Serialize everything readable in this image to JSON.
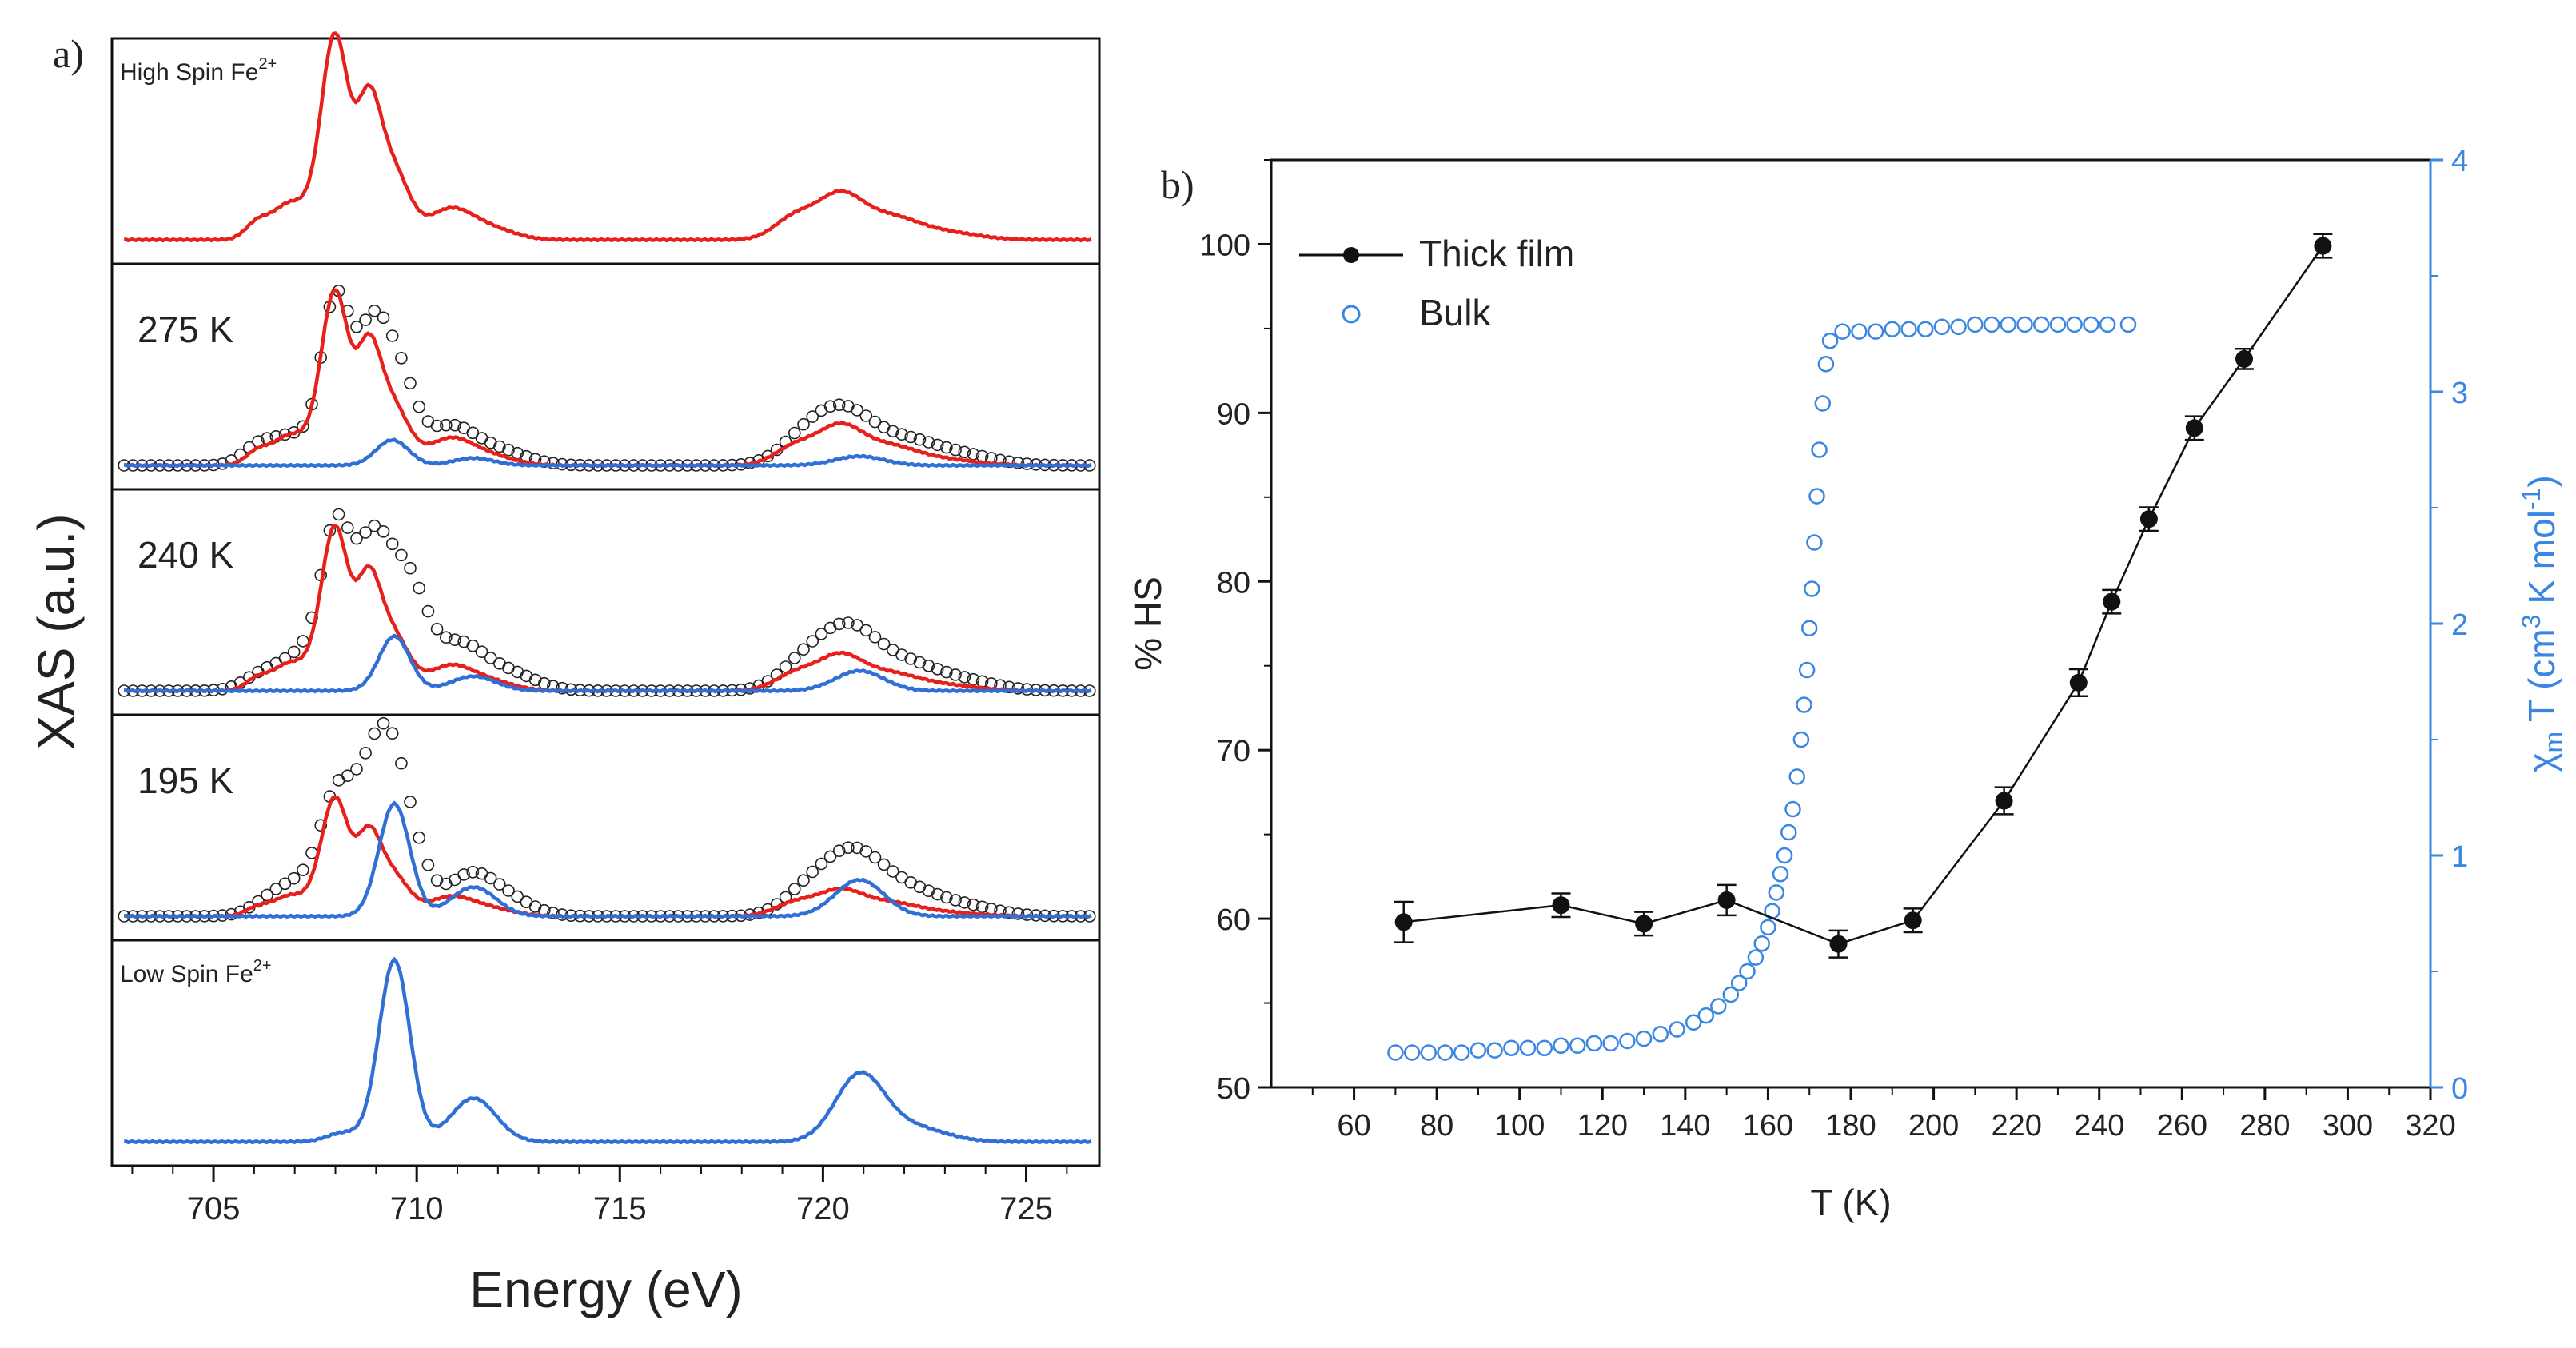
{
  "colors": {
    "hs": "#e8201c",
    "ls": "#2f6fd6",
    "exp": "#222222",
    "film": "#111111",
    "bulk": "#3a86e0",
    "axis": "#111111"
  },
  "chart_data": [
    {
      "type": "line",
      "panel_label": "a)",
      "title": "",
      "xlabel": "Energy (eV)",
      "ylabel": "XAS (a.u.)",
      "xlim": [
        702.5,
        726.8
      ],
      "xticks": [
        "705",
        "710",
        "715",
        "720",
        "725"
      ],
      "subpanels": [
        {
          "label": "High Spin Fe",
          "label_sup": "2+",
          "series": [
            {
              "name": "HS",
              "color": "hs",
              "peaks": [
                [
                  706.1,
                  0.1,
                  0.3
                ],
                [
                  706.8,
                  0.16,
                  0.35
                ],
                [
                  707.6,
                  0.18,
                  0.45
                ],
                [
                  708.0,
                  1.0,
                  0.32
                ],
                [
                  708.8,
                  0.68,
                  0.3
                ],
                [
                  709.4,
                  0.38,
                  0.4
                ],
                [
                  710.8,
                  0.16,
                  0.55
                ],
                [
                  711.8,
                  0.06,
                  0.6
                ],
                [
                  719.3,
                  0.12,
                  0.5
                ],
                [
                  720.4,
                  0.23,
                  0.55
                ],
                [
                  721.6,
                  0.12,
                  0.7
                ],
                [
                  723.0,
                  0.04,
                  0.8
                ]
              ]
            }
          ]
        },
        {
          "label": "275 K",
          "series": [
            {
              "name": "experimental",
              "color": "exp",
              "markers": "circle",
              "peaks": [
                [
                  706.1,
                  0.1,
                  0.4
                ],
                [
                  707.0,
                  0.16,
                  0.5
                ],
                [
                  708.0,
                  0.88,
                  0.35
                ],
                [
                  708.9,
                  0.72,
                  0.4
                ],
                [
                  709.6,
                  0.42,
                  0.4
                ],
                [
                  710.8,
                  0.2,
                  0.6
                ],
                [
                  712.0,
                  0.08,
                  0.7
                ],
                [
                  719.5,
                  0.12,
                  0.6
                ],
                [
                  720.5,
                  0.28,
                  0.7
                ],
                [
                  722.0,
                  0.13,
                  0.8
                ],
                [
                  723.5,
                  0.05,
                  0.8
                ]
              ]
            },
            {
              "name": "HS fraction",
              "color": "hs",
              "peaks": [
                [
                  706.1,
                  0.08,
                  0.3
                ],
                [
                  706.8,
                  0.13,
                  0.35
                ],
                [
                  707.6,
                  0.15,
                  0.45
                ],
                [
                  708.0,
                  0.85,
                  0.32
                ],
                [
                  708.8,
                  0.58,
                  0.3
                ],
                [
                  709.4,
                  0.32,
                  0.4
                ],
                [
                  710.8,
                  0.14,
                  0.55
                ],
                [
                  711.8,
                  0.05,
                  0.6
                ],
                [
                  719.3,
                  0.1,
                  0.5
                ],
                [
                  720.4,
                  0.2,
                  0.55
                ],
                [
                  721.6,
                  0.1,
                  0.7
                ],
                [
                  723.0,
                  0.03,
                  0.8
                ]
              ]
            },
            {
              "name": "LS fraction",
              "color": "ls",
              "peaks": [
                [
                  709.4,
                  0.14,
                  0.4
                ],
                [
                  711.4,
                  0.04,
                  0.5
                ],
                [
                  720.9,
                  0.05,
                  0.6
                ]
              ]
            }
          ]
        },
        {
          "label": "240 K",
          "series": [
            {
              "name": "experimental",
              "color": "exp",
              "markers": "circle",
              "peaks": [
                [
                  706.3,
                  0.1,
                  0.5
                ],
                [
                  707.3,
                  0.2,
                  0.5
                ],
                [
                  708.0,
                  0.78,
                  0.35
                ],
                [
                  708.9,
                  0.8,
                  0.45
                ],
                [
                  709.8,
                  0.55,
                  0.45
                ],
                [
                  711.0,
                  0.24,
                  0.6
                ],
                [
                  712.2,
                  0.1,
                  0.7
                ],
                [
                  719.5,
                  0.13,
                  0.6
                ],
                [
                  720.6,
                  0.32,
                  0.7
                ],
                [
                  722.0,
                  0.14,
                  0.8
                ],
                [
                  723.5,
                  0.05,
                  0.8
                ]
              ]
            },
            {
              "name": "HS fraction",
              "color": "hs",
              "peaks": [
                [
                  706.1,
                  0.07,
                  0.3
                ],
                [
                  706.8,
                  0.12,
                  0.35
                ],
                [
                  707.6,
                  0.14,
                  0.45
                ],
                [
                  708.0,
                  0.8,
                  0.32
                ],
                [
                  708.8,
                  0.55,
                  0.3
                ],
                [
                  709.4,
                  0.3,
                  0.4
                ],
                [
                  710.8,
                  0.13,
                  0.55
                ],
                [
                  711.8,
                  0.05,
                  0.6
                ],
                [
                  719.3,
                  0.09,
                  0.5
                ],
                [
                  720.4,
                  0.18,
                  0.55
                ],
                [
                  721.6,
                  0.09,
                  0.7
                ],
                [
                  723.0,
                  0.03,
                  0.8
                ]
              ]
            },
            {
              "name": "LS fraction",
              "color": "ls",
              "peaks": [
                [
                  709.45,
                  0.3,
                  0.38
                ],
                [
                  711.4,
                  0.08,
                  0.55
                ],
                [
                  720.9,
                  0.11,
                  0.6
                ]
              ]
            }
          ]
        },
        {
          "label": "195 K",
          "series": [
            {
              "name": "experimental",
              "color": "exp",
              "markers": "circle",
              "peaks": [
                [
                  706.5,
                  0.1,
                  0.5
                ],
                [
                  707.3,
                  0.16,
                  0.5
                ],
                [
                  708.0,
                  0.55,
                  0.38
                ],
                [
                  708.7,
                  0.52,
                  0.4
                ],
                [
                  709.3,
                  0.78,
                  0.4
                ],
                [
                  709.9,
                  0.3,
                  0.4
                ],
                [
                  711.3,
                  0.22,
                  0.6
                ],
                [
                  712.3,
                  0.08,
                  0.6
                ],
                [
                  719.6,
                  0.12,
                  0.6
                ],
                [
                  720.7,
                  0.32,
                  0.7
                ],
                [
                  722.0,
                  0.14,
                  0.8
                ],
                [
                  723.5,
                  0.05,
                  0.8
                ]
              ]
            },
            {
              "name": "HS fraction",
              "color": "hs",
              "peaks": [
                [
                  706.1,
                  0.05,
                  0.3
                ],
                [
                  706.8,
                  0.09,
                  0.35
                ],
                [
                  707.6,
                  0.1,
                  0.45
                ],
                [
                  708.0,
                  0.58,
                  0.32
                ],
                [
                  708.8,
                  0.4,
                  0.3
                ],
                [
                  709.4,
                  0.22,
                  0.4
                ],
                [
                  710.8,
                  0.1,
                  0.55
                ],
                [
                  711.8,
                  0.04,
                  0.6
                ],
                [
                  719.3,
                  0.07,
                  0.5
                ],
                [
                  720.4,
                  0.13,
                  0.55
                ],
                [
                  721.6,
                  0.07,
                  0.7
                ],
                [
                  723.0,
                  0.02,
                  0.8
                ]
              ]
            },
            {
              "name": "LS fraction",
              "color": "ls",
              "peaks": [
                [
                  709.45,
                  0.62,
                  0.38
                ],
                [
                  711.4,
                  0.16,
                  0.55
                ],
                [
                  720.9,
                  0.2,
                  0.6
                ]
              ]
            }
          ]
        },
        {
          "label": "Low Spin Fe",
          "label_sup": "2+",
          "series": [
            {
              "name": "LS",
              "color": "ls",
              "peaks": [
                [
                  708.2,
                  0.05,
                  0.4
                ],
                [
                  709.45,
                  1.0,
                  0.38
                ],
                [
                  711.4,
                  0.24,
                  0.55
                ],
                [
                  720.9,
                  0.36,
                  0.6
                ],
                [
                  722.2,
                  0.08,
                  0.8
                ]
              ]
            }
          ]
        }
      ]
    },
    {
      "type": "scatter",
      "panel_label": "b)",
      "title": "",
      "xlabel": "T (K)",
      "ylabel": "% HS",
      "y2label": "χ",
      "y2label_sub": "m",
      "y2label_rest": " T (cm",
      "y2label_sup": "3",
      "y2label_end": " K mol",
      "y2label_sup2": "-1",
      "y2label_close": ")",
      "xlim": [
        40,
        320
      ],
      "ylim": [
        50,
        105
      ],
      "y2lim": [
        0,
        4
      ],
      "xticks": [
        "60",
        "80",
        "100",
        "120",
        "140",
        "160",
        "180",
        "200",
        "220",
        "240",
        "260",
        "280",
        "300",
        "320"
      ],
      "yticks": [
        "50",
        "60",
        "70",
        "80",
        "90",
        "100"
      ],
      "y2ticks": [
        "0",
        "1",
        "2",
        "3",
        "4"
      ],
      "legend_position": "top-left",
      "series": [
        {
          "name": "Thick film",
          "axis": "left",
          "color": "film",
          "style": "line+filled-circle",
          "x": [
            72,
            110,
            130,
            150,
            177,
            195,
            217,
            235,
            243,
            252,
            263,
            275,
            294
          ],
          "y": [
            59.8,
            60.8,
            59.7,
            61.1,
            58.5,
            59.9,
            67.0,
            74.0,
            78.8,
            83.7,
            89.1,
            93.2,
            99.9
          ],
          "err": [
            1.2,
            0.7,
            0.7,
            0.9,
            0.8,
            0.7,
            0.8,
            0.8,
            0.7,
            0.7,
            0.7,
            0.6,
            0.7
          ]
        },
        {
          "name": "Bulk",
          "axis": "right",
          "color": "bulk",
          "style": "open-circle",
          "x": [
            70,
            74,
            78,
            82,
            86,
            90,
            94,
            98,
            102,
            106,
            110,
            114,
            118,
            122,
            126,
            130,
            134,
            138,
            142,
            145,
            148,
            151,
            153,
            155,
            157,
            158.5,
            160,
            161,
            162,
            163,
            164,
            165,
            166,
            167,
            168,
            168.7,
            169.4,
            170,
            170.6,
            171.2,
            171.8,
            172.4,
            173.2,
            174,
            175,
            178,
            182,
            186,
            190,
            194,
            198,
            202,
            206,
            210,
            214,
            218,
            222,
            226,
            230,
            234,
            238,
            242,
            247
          ],
          "y": [
            0.15,
            0.15,
            0.15,
            0.15,
            0.15,
            0.16,
            0.16,
            0.17,
            0.17,
            0.17,
            0.18,
            0.18,
            0.19,
            0.19,
            0.2,
            0.21,
            0.23,
            0.25,
            0.28,
            0.31,
            0.35,
            0.4,
            0.45,
            0.5,
            0.56,
            0.62,
            0.69,
            0.76,
            0.84,
            0.92,
            1.0,
            1.1,
            1.2,
            1.34,
            1.5,
            1.65,
            1.8,
            1.98,
            2.15,
            2.35,
            2.55,
            2.75,
            2.95,
            3.12,
            3.22,
            3.26,
            3.26,
            3.26,
            3.27,
            3.27,
            3.27,
            3.28,
            3.28,
            3.29,
            3.29,
            3.29,
            3.29,
            3.29,
            3.29,
            3.29,
            3.29,
            3.29,
            3.29
          ]
        }
      ]
    }
  ]
}
